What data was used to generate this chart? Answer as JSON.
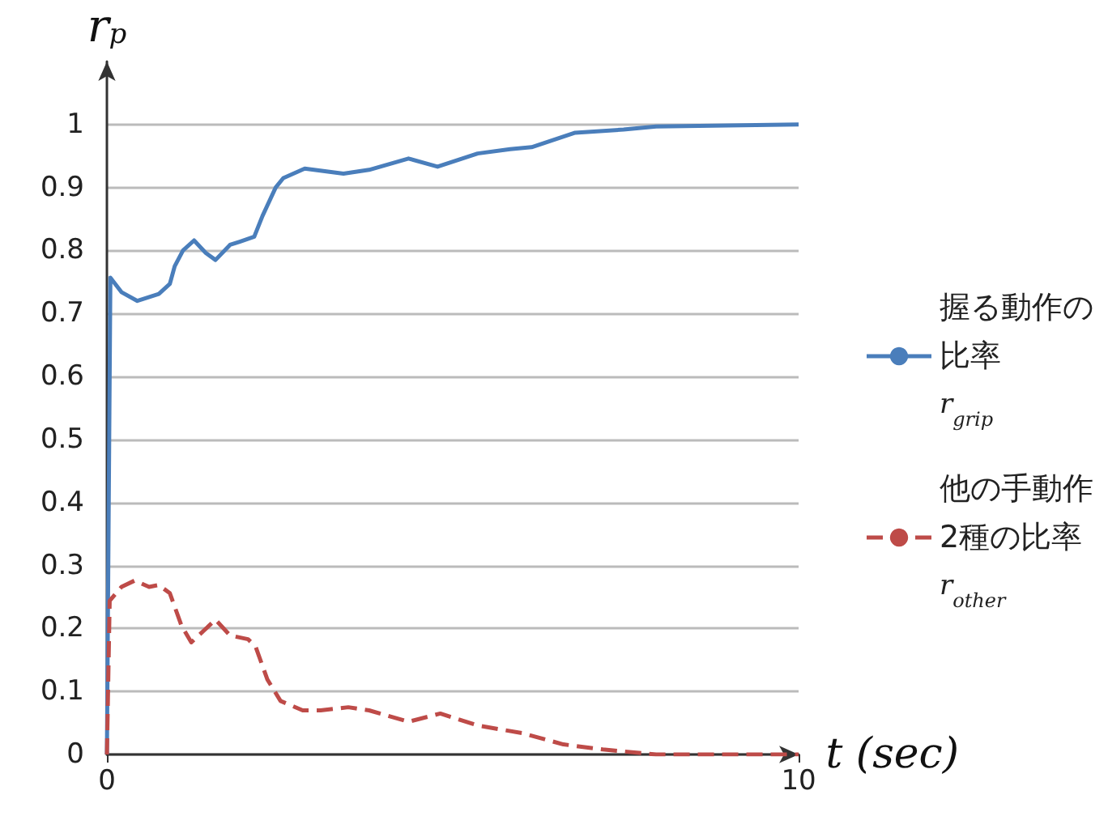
{
  "chart_data": {
    "type": "line",
    "ylabel": "r$_{p}$",
    "xlabel": "t (sec)",
    "xlim": [
      0,
      10
    ],
    "xticks": [
      0,
      10
    ],
    "ylim": [
      0,
      1.1
    ],
    "yticks": [
      0,
      0.1,
      0.2,
      0.3,
      0.4,
      0.5,
      0.6,
      0.7,
      0.8,
      0.9,
      1
    ],
    "grid": "y",
    "legend": "right",
    "marker": "none",
    "series": [
      {
        "name": "握る動作の比率 r$_{grip}$",
        "color": "#4a7ebb",
        "line_style": "solid",
        "x": [
          0,
          0.05,
          0.21,
          0.44,
          0.75,
          0.91,
          0.98,
          1.1,
          1.26,
          1.43,
          1.57,
          1.78,
          1.92,
          2.13,
          2.25,
          2.44,
          2.55,
          2.86,
          3.42,
          3.79,
          4.36,
          4.78,
          5.36,
          5.83,
          6.14,
          6.77,
          7.47,
          7.94,
          10
        ],
        "values": [
          0,
          0.757,
          0.734,
          0.72,
          0.731,
          0.747,
          0.775,
          0.8,
          0.816,
          0.796,
          0.785,
          0.809,
          0.814,
          0.822,
          0.855,
          0.9,
          0.915,
          0.93,
          0.922,
          0.928,
          0.946,
          0.933,
          0.954,
          0.961,
          0.964,
          0.987,
          0.992,
          0.997,
          1
        ]
      },
      {
        "name": "他の手動作2種の比率 r$_{other}$",
        "color": "#be4b48",
        "line_style": "dashed",
        "x": [
          0,
          0.04,
          0.21,
          0.4,
          0.61,
          0.75,
          0.91,
          1.08,
          1.22,
          1.57,
          1.78,
          2.04,
          2.15,
          2.32,
          2.51,
          2.83,
          3.09,
          3.49,
          3.79,
          4.36,
          4.82,
          5.36,
          6.0,
          6.6,
          7.17,
          7.94,
          10
        ],
        "values": [
          0,
          0.244,
          0.266,
          0.276,
          0.266,
          0.269,
          0.256,
          0.204,
          0.178,
          0.214,
          0.189,
          0.183,
          0.171,
          0.119,
          0.085,
          0.07,
          0.07,
          0.075,
          0.07,
          0.052,
          0.065,
          0.046,
          0.034,
          0.016,
          0.008,
          0,
          0
        ]
      }
    ]
  }
}
